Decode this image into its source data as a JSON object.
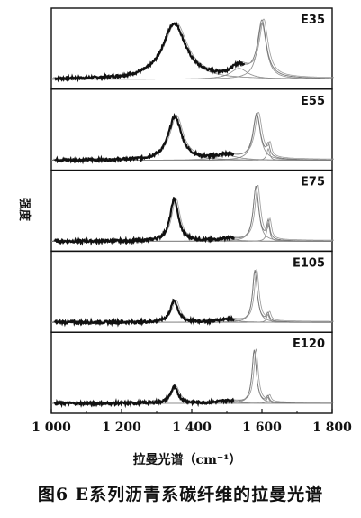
{
  "caption": "图6  E系列沥青系碳纤维的拉曼光谱",
  "chart_data": {
    "type": "line",
    "ylabel": "强度",
    "xlabel": "拉曼光谱（cm⁻¹）",
    "xlim": [
      1000,
      1800
    ],
    "x_ticks": [
      1000,
      1200,
      1400,
      1600,
      1800
    ],
    "x_tick_labels": [
      "1 000",
      "1 200",
      "1 400",
      "1 600",
      "1 800"
    ],
    "panels": [
      {
        "label": "E35",
        "series": [
          {
            "type": "fit",
            "peaks": [
              [
                1350,
                0.92,
                80
              ],
              [
                1600,
                0.93,
                30
              ],
              [
                1535,
                0.18,
                60
              ]
            ]
          },
          {
            "type": "data",
            "x_range": [
              1010,
              1550
            ]
          }
        ]
      },
      {
        "label": "E55",
        "series": [
          {
            "type": "fit",
            "peaks": [
              [
                1352,
                0.72,
                45
              ],
              [
                1585,
                0.76,
                25
              ],
              [
                1618,
                0.19,
                10
              ],
              [
                1500,
                0.08,
                80
              ]
            ]
          },
          {
            "type": "data",
            "x_range": [
              1010,
              1520
            ]
          }
        ]
      },
      {
        "label": "E75",
        "series": [
          {
            "type": "fit",
            "peaks": [
              [
                1350,
                0.7,
                28
              ],
              [
                1583,
                0.91,
                19
              ],
              [
                1618,
                0.3,
                10
              ],
              [
                1500,
                0.04,
                60
              ]
            ]
          },
          {
            "type": "data",
            "x_range": [
              1010,
              1520
            ]
          }
        ]
      },
      {
        "label": "E105",
        "series": [
          {
            "type": "fit",
            "peaks": [
              [
                1350,
                0.36,
                26
              ],
              [
                1580,
                0.86,
                16
              ],
              [
                1617,
                0.13,
                9
              ],
              [
                1500,
                0.05,
                60
              ]
            ]
          },
          {
            "type": "data",
            "x_range": [
              1010,
              1520
            ]
          }
        ]
      },
      {
        "label": "E120",
        "series": [
          {
            "type": "fit",
            "peaks": [
              [
                1350,
                0.27,
                26
              ],
              [
                1578,
                0.88,
                15
              ],
              [
                1617,
                0.1,
                9
              ],
              [
                1500,
                0.04,
                60
              ]
            ]
          },
          {
            "type": "data",
            "x_range": [
              1010,
              1520
            ]
          }
        ]
      }
    ]
  }
}
